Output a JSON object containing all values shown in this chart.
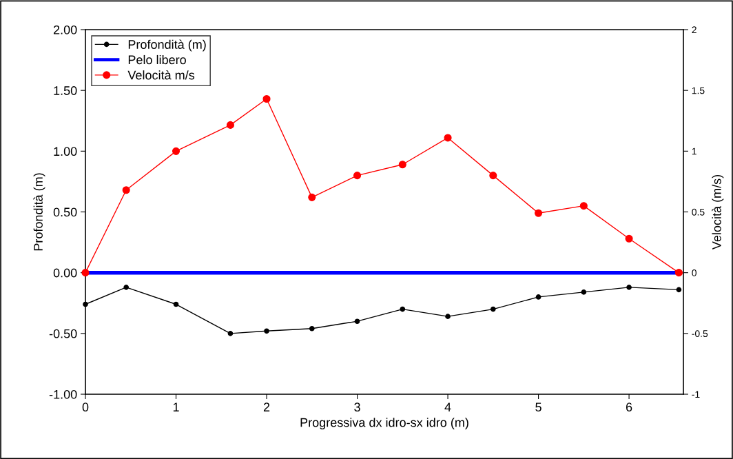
{
  "chart_data": {
    "type": "line",
    "xlabel": "Progressiva dx idro-sx idro (m)",
    "ylabel": "Profondità (m)",
    "y2label": "Velocità (m/s)",
    "series": [
      {
        "name": "Profondità (m)",
        "color": "#000000",
        "marker": "circle",
        "x": [
          0,
          0.45,
          1,
          1.6,
          2,
          2.5,
          3,
          3.5,
          4,
          4.5,
          5,
          5.5,
          6,
          6.55
        ],
        "values": [
          -0.26,
          -0.12,
          -0.26,
          -0.5,
          -0.48,
          -0.46,
          -0.4,
          -0.3,
          -0.36,
          -0.3,
          -0.2,
          -0.16,
          -0.12,
          -0.14
        ]
      },
      {
        "name": "Pelo libero",
        "color": "#0000ff",
        "marker": "none",
        "x": [
          0,
          6.55
        ],
        "values": [
          0,
          0
        ]
      },
      {
        "name": "Velocità m/s",
        "color": "#ff0000",
        "marker": "circle",
        "axis": "y2",
        "x": [
          0,
          0.45,
          1,
          1.6,
          2,
          2.5,
          3,
          3.5,
          4,
          4.5,
          5,
          5.5,
          6,
          6.55
        ],
        "values": [
          0,
          0.68,
          1.0,
          1.215,
          1.43,
          0.62,
          0.8,
          0.89,
          1.11,
          0.8,
          0.49,
          0.55,
          0.28,
          0
        ]
      }
    ],
    "xlim": [
      0,
      6.6
    ],
    "xticks": [
      0,
      1,
      2,
      3,
      4,
      5,
      6
    ],
    "ylim": [
      -1,
      2
    ],
    "yticks": [
      {
        "value": -1,
        "label": "-1.00"
      },
      {
        "value": -0.5,
        "label": "-0.50"
      },
      {
        "value": 0,
        "label": "0.00"
      },
      {
        "value": 0.5,
        "label": "0.50"
      },
      {
        "value": 1,
        "label": "1.00"
      },
      {
        "value": 1.5,
        "label": "1.50"
      },
      {
        "value": 2,
        "label": "2.00"
      }
    ],
    "y2lim": [
      -1,
      2
    ],
    "y2ticks": [
      -1,
      -0.5,
      0,
      0.5,
      1,
      1.5,
      2
    ],
    "legend": "top left",
    "grid": false,
    "line_style": "solid"
  }
}
